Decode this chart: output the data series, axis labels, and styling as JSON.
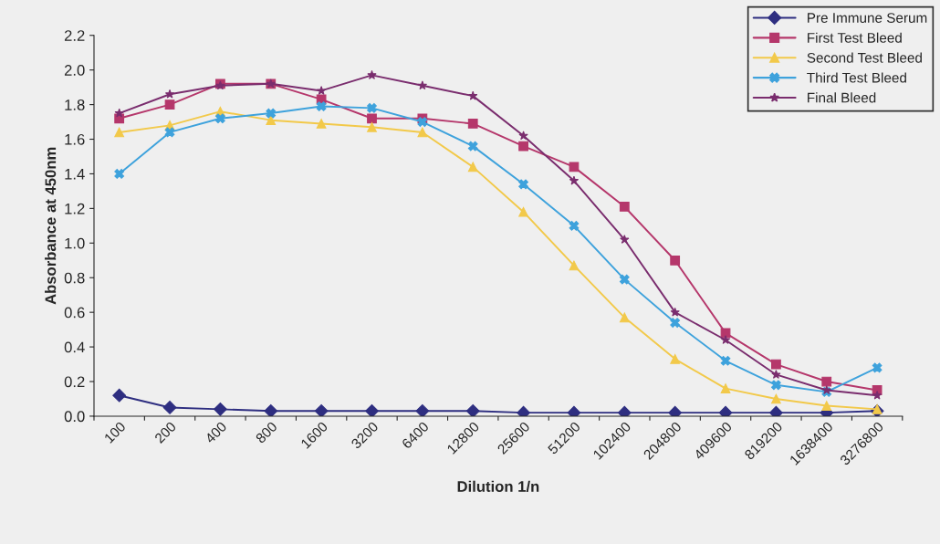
{
  "chart_data": {
    "type": "line",
    "xlabel": "Dilution 1/n",
    "ylabel": "Absorbance at 450nm",
    "categories": [
      "100",
      "200",
      "400",
      "800",
      "1600",
      "3200",
      "6400",
      "12800",
      "25600",
      "51200",
      "102400",
      "204800",
      "409600",
      "819200",
      "1638400",
      "3276800"
    ],
    "series": [
      {
        "name": "Pre Immune Serum",
        "color": "#2e2e80",
        "marker": "diamond",
        "values": [
          0.12,
          0.05,
          0.04,
          0.03,
          0.03,
          0.03,
          0.03,
          0.03,
          0.02,
          0.02,
          0.02,
          0.02,
          0.02,
          0.02,
          0.02,
          0.03
        ]
      },
      {
        "name": "First Test Bleed",
        "color": "#b5376b",
        "marker": "square",
        "values": [
          1.72,
          1.8,
          1.92,
          1.92,
          1.83,
          1.72,
          1.72,
          1.69,
          1.56,
          1.44,
          1.21,
          0.9,
          0.48,
          0.3,
          0.2,
          0.15
        ]
      },
      {
        "name": "Second Test Bleed",
        "color": "#f2c94a",
        "marker": "triangle",
        "values": [
          1.64,
          1.68,
          1.76,
          1.71,
          1.69,
          1.67,
          1.64,
          1.44,
          1.18,
          0.87,
          0.57,
          0.33,
          0.16,
          0.1,
          0.06,
          0.04
        ]
      },
      {
        "name": "Third Test Bleed",
        "color": "#3ea2dc",
        "marker": "cross",
        "values": [
          1.4,
          1.64,
          1.72,
          1.75,
          1.79,
          1.78,
          1.7,
          1.56,
          1.34,
          1.1,
          0.79,
          0.54,
          0.32,
          0.18,
          0.14,
          0.28
        ]
      },
      {
        "name": "Final Bleed",
        "color": "#7a2d6e",
        "marker": "star",
        "values": [
          1.75,
          1.86,
          1.91,
          1.92,
          1.88,
          1.97,
          1.91,
          1.85,
          1.62,
          1.36,
          1.02,
          0.6,
          0.44,
          0.24,
          0.15,
          0.12
        ]
      }
    ],
    "ylim": [
      0,
      2.2
    ],
    "yticks": [
      {
        "value": 0,
        "label": "0.0"
      },
      0.2,
      0.4,
      0.6,
      0.8,
      {
        "value": 1,
        "label": "1.0"
      },
      1.2,
      1.4,
      1.6,
      1.8,
      {
        "value": 2,
        "label": "2.0"
      },
      2.2
    ],
    "grid": false,
    "legend": "top right",
    "line_style": "solid"
  }
}
